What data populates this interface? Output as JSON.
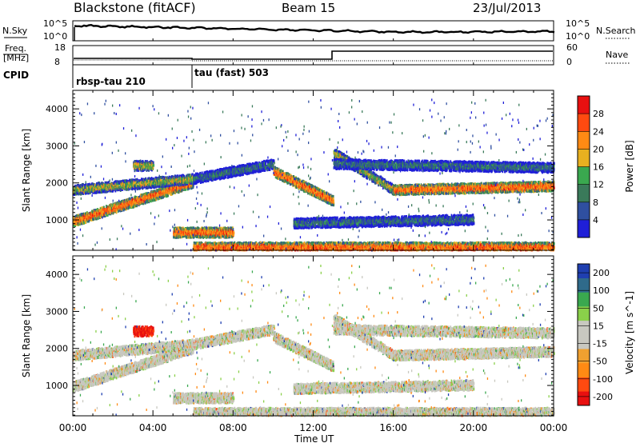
{
  "header": {
    "station": "Blackstone (fitACF)",
    "beam": "Beam 15",
    "date": "23/Jul/2013"
  },
  "left_labels": {
    "nsky": "N.Sky",
    "freq_line1": "Freq.",
    "freq_line2": "[MHz]",
    "cpid": "CPID"
  },
  "right_labels": {
    "nsearch": "N.Search",
    "nave": "Nave"
  },
  "noise_axis": {
    "left_ticks": [
      "10^5",
      "10^0"
    ],
    "right_ticks": [
      "10^5",
      "10^0"
    ]
  },
  "freq_axis": {
    "left_ticks": [
      "18",
      "8"
    ],
    "right_ticks": [
      "60",
      "0"
    ]
  },
  "cpid_modes": [
    {
      "label": "rbsp-tau 210",
      "start_hour": 0
    },
    {
      "label": "tau (fast) 503",
      "start_hour": 6
    }
  ],
  "colors": {
    "power_scale": [
      "#1f1fd8",
      "#2f4fa0",
      "#3a7a5a",
      "#3aa84f",
      "#e8b020",
      "#ff8a14",
      "#ff4a10",
      "#e81010"
    ],
    "velocity_scale": [
      "#e81010",
      "#ff4a10",
      "#ff8a14",
      "#f0a030",
      "#c8c8c0",
      "#c8c8c0",
      "#8ad04a",
      "#3aa84f",
      "#2f6a8a",
      "#1f3fb0"
    ]
  },
  "chart_data": [
    {
      "type": "heatmap",
      "title": "",
      "xlabel": "",
      "ylabel": "Slant Range [km]",
      "colorbar_label": "Power [dB]",
      "colorbar_ticks": [
        "28",
        "24",
        "20",
        "16",
        "12",
        "8",
        "4"
      ],
      "x_ticks": [
        "00:00",
        "04:00",
        "08:00",
        "12:00",
        "16:00",
        "20:00",
        "00:00"
      ],
      "y_ticks": [
        "4000",
        "3000",
        "2000",
        "1000"
      ],
      "xlim_hours": [
        0,
        24
      ],
      "ylim_km": [
        180,
        4500
      ],
      "grid": false,
      "echo_bands": [
        {
          "t_start": 0,
          "t_end": 6,
          "range_start_km": 950,
          "range_end_km": 2000,
          "level": "high"
        },
        {
          "t_start": 0,
          "t_end": 6,
          "range_start_km": 1800,
          "range_end_km": 2100,
          "level": "medium"
        },
        {
          "t_start": 3,
          "t_end": 4,
          "range_start_km": 2450,
          "range_end_km": 2450,
          "level": "medium"
        },
        {
          "t_start": 6,
          "t_end": 24,
          "range_start_km": 250,
          "range_end_km": 250,
          "level": "high"
        },
        {
          "t_start": 5,
          "t_end": 8,
          "range_start_km": 650,
          "range_end_km": 650,
          "level": "high"
        },
        {
          "t_start": 6,
          "t_end": 10,
          "range_start_km": 2100,
          "range_end_km": 2500,
          "level": "low"
        },
        {
          "t_start": 10,
          "t_end": 13,
          "range_start_km": 2300,
          "range_end_km": 1500,
          "level": "high"
        },
        {
          "t_start": 13,
          "t_end": 16,
          "range_start_km": 2800,
          "range_end_km": 1800,
          "level": "medium"
        },
        {
          "t_start": 16,
          "t_end": 24,
          "range_start_km": 1800,
          "range_end_km": 1900,
          "level": "high"
        },
        {
          "t_start": 13,
          "t_end": 24,
          "range_start_km": 2500,
          "range_end_km": 2400,
          "level": "low"
        },
        {
          "t_start": 11,
          "t_end": 20,
          "range_start_km": 900,
          "range_end_km": 1000,
          "level": "low"
        }
      ]
    },
    {
      "type": "heatmap",
      "title": "",
      "xlabel": "Time UT",
      "ylabel": "Slant Range [km]",
      "colorbar_label": "Velocity [m s^-1]",
      "colorbar_ticks": [
        "200",
        "100",
        "50",
        "15",
        "-15",
        "-50",
        "-100",
        "-200"
      ],
      "x_ticks": [
        "00:00",
        "04:00",
        "08:00",
        "12:00",
        "16:00",
        "20:00",
        "00:00"
      ],
      "y_ticks": [
        "4000",
        "3000",
        "2000",
        "1000"
      ],
      "xlim_hours": [
        0,
        24
      ],
      "ylim_km": [
        180,
        4500
      ],
      "grid": false
    }
  ]
}
